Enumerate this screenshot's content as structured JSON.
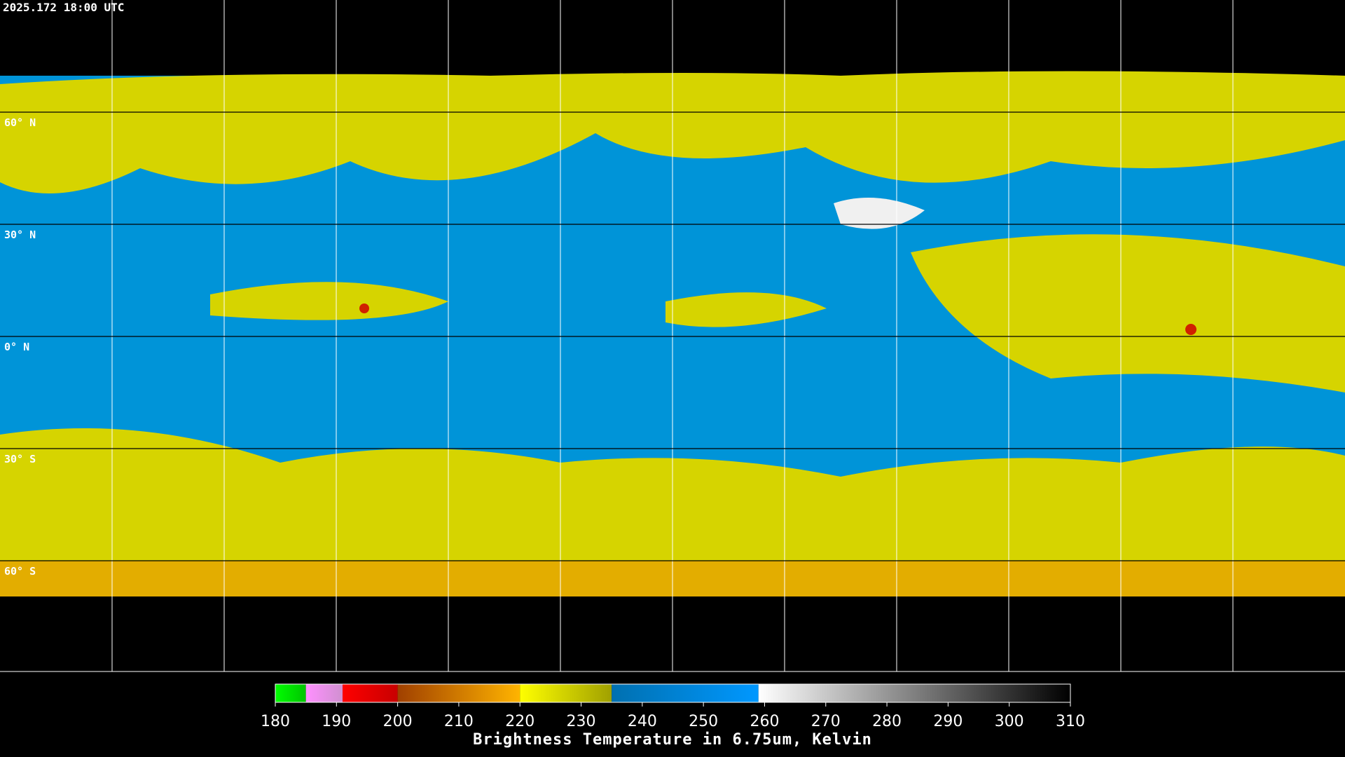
{
  "header": {
    "title": "2025.172 18:00 UTC"
  },
  "map": {
    "latitude_labels": [
      "60° N",
      "30° N",
      "0° N",
      "30° S",
      "60° S"
    ]
  },
  "colorbar": {
    "label": "Brightness Temperature in 6.75um, Kelvin",
    "range": [
      180,
      310
    ],
    "ticks": [
      180,
      190,
      200,
      210,
      220,
      230,
      240,
      250,
      260,
      270,
      280,
      290,
      300,
      310
    ],
    "segments": [
      {
        "from": 180,
        "to": 185,
        "color_start": "#00ff00",
        "color_end": "#00c400"
      },
      {
        "from": 185,
        "to": 191,
        "color_start": "#ff90ff",
        "color_end": "#d090d0"
      },
      {
        "from": 191,
        "to": 200,
        "color_start": "#ff0000",
        "color_end": "#c80000"
      },
      {
        "from": 200,
        "to": 220,
        "color_start": "#a04000",
        "color_end": "#ffb400"
      },
      {
        "from": 220,
        "to": 235,
        "color_start": "#ffff00",
        "color_end": "#a0a000"
      },
      {
        "from": 235,
        "to": 259,
        "color_start": "#0070b0",
        "color_end": "#0098ff"
      },
      {
        "from": 259,
        "to": 310,
        "color_start": "#ffffff",
        "color_end": "#000000"
      }
    ]
  }
}
